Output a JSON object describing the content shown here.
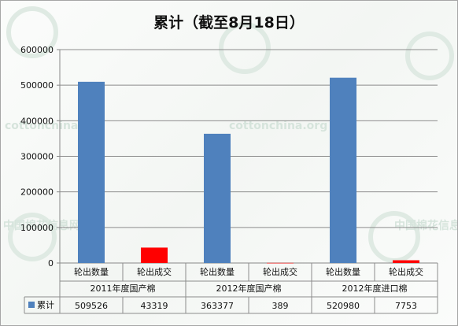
{
  "chart_data": {
    "type": "bar",
    "title": "累计（截至8月18日）",
    "categories": [
      "轮出数量",
      "轮出成交",
      "轮出数量",
      "轮出成交",
      "轮出数量",
      "轮出成交"
    ],
    "groups": [
      {
        "label": "2011年度国产棉",
        "span": 2
      },
      {
        "label": "2012年度国产棉",
        "span": 2
      },
      {
        "label": "2012年度进口棉",
        "span": 2
      }
    ],
    "series": [
      {
        "name": "累计",
        "values": [
          509526,
          43319,
          363377,
          389,
          520980,
          7753
        ]
      }
    ],
    "bar_colors": [
      "#4f81bd",
      "#ff0000",
      "#4f81bd",
      "#ff0000",
      "#4f81bd",
      "#ff0000"
    ],
    "legend_color": "#4f81bd",
    "ylim": [
      0,
      600000
    ],
    "yticks": [
      0,
      100000,
      200000,
      300000,
      400000,
      500000,
      600000
    ],
    "grid": true,
    "legend_placement": "data-table"
  },
  "watermarks": [
    "cottonchina.org",
    "cottonchina.org",
    "中国棉花信息网",
    "中国棉花信息网"
  ]
}
